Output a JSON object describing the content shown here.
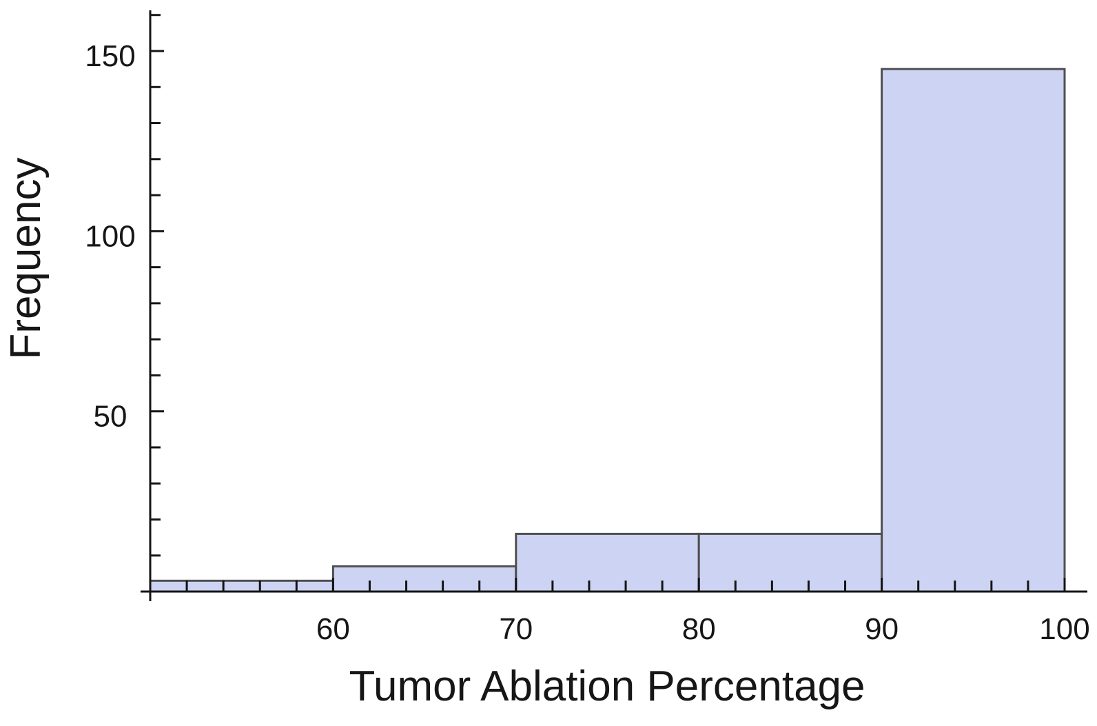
{
  "chart_data": {
    "type": "bar",
    "subtype": "histogram",
    "title": "",
    "xlabel": "Tumor Ablation Percentage",
    "ylabel": "Frequency",
    "bins": [
      {
        "x0": 50,
        "x1": 60,
        "count": 3
      },
      {
        "x0": 60,
        "x1": 70,
        "count": 7
      },
      {
        "x0": 70,
        "x1": 80,
        "count": 16
      },
      {
        "x0": 80,
        "x1": 90,
        "count": 16
      },
      {
        "x0": 90,
        "x1": 100,
        "count": 145
      }
    ],
    "xlim": [
      50,
      101.2
    ],
    "ylim": [
      0,
      161
    ],
    "x_major_ticks": [
      60,
      70,
      80,
      90,
      100
    ],
    "x_minor_tick_step": 2,
    "x_minor_tick_range": [
      52,
      98
    ],
    "y_major_ticks": [
      50,
      100,
      150
    ],
    "y_minor_tick_step": 10,
    "y_minor_tick_range": [
      10,
      160
    ],
    "grid": false,
    "legend": null,
    "colors": {
      "bar_fill": "#cdd3f3",
      "bar_stroke": "#4f4f4f",
      "axis": "#141414",
      "text": "#161616",
      "background": "#ffffff"
    }
  }
}
